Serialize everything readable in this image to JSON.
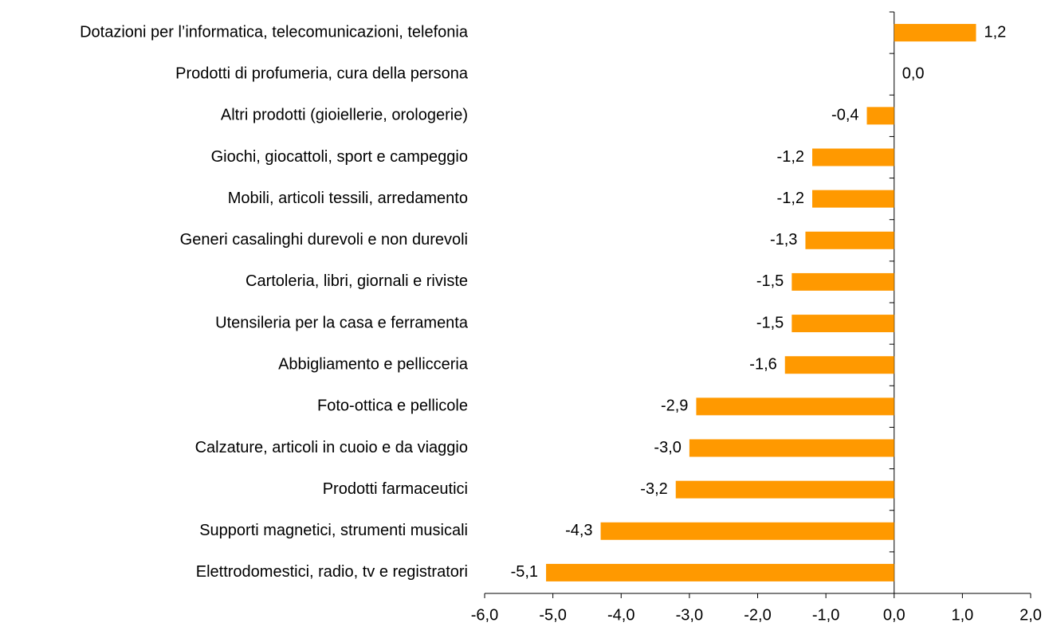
{
  "chart_data": {
    "type": "bar",
    "orientation": "horizontal",
    "categories": [
      "Dotazioni per l’informatica, telecomunicazioni, telefonia",
      "Prodotti di profumeria, cura della persona",
      "Altri prodotti (gioiellerie, orologerie)",
      "Giochi, giocattoli, sport e campeggio",
      "Mobili, articoli tessili, arredamento",
      "Generi casalinghi durevoli e non durevoli",
      "Cartoleria, libri, giornali e riviste",
      "Utensileria per la casa e ferramenta",
      "Abbigliamento e pellicceria",
      "Foto-ottica e pellicole",
      "Calzature, articoli in cuoio e da viaggio",
      "Prodotti farmaceutici",
      "Supporti magnetici, strumenti musicali",
      "Elettrodomestici, radio, tv e registratori"
    ],
    "values": [
      1.2,
      0.0,
      -0.4,
      -1.2,
      -1.2,
      -1.3,
      -1.5,
      -1.5,
      -1.6,
      -2.9,
      -3.0,
      -3.2,
      -4.3,
      -5.1
    ],
    "value_labels": [
      "1,2",
      "0,0",
      "-0,4",
      "-1,2",
      "-1,2",
      "-1,3",
      "-1,5",
      "-1,5",
      "-1,6",
      "-2,9",
      "-3,0",
      "-3,2",
      "-4,3",
      "-5,1"
    ],
    "color": "#ff9900",
    "xlim": [
      -6,
      2
    ],
    "xticks": [
      {
        "value": -6,
        "label": "-6,0"
      },
      {
        "value": -5,
        "label": "-5,0"
      },
      {
        "value": -4,
        "label": "-4,0"
      },
      {
        "value": -3,
        "label": "-3,0"
      },
      {
        "value": -2,
        "label": "-2,0"
      },
      {
        "value": -1,
        "label": "-1,0"
      },
      {
        "value": 0,
        "label": "0,0"
      },
      {
        "value": 1,
        "label": "1,0"
      },
      {
        "value": 2,
        "label": "2,0"
      }
    ],
    "grid": false
  }
}
